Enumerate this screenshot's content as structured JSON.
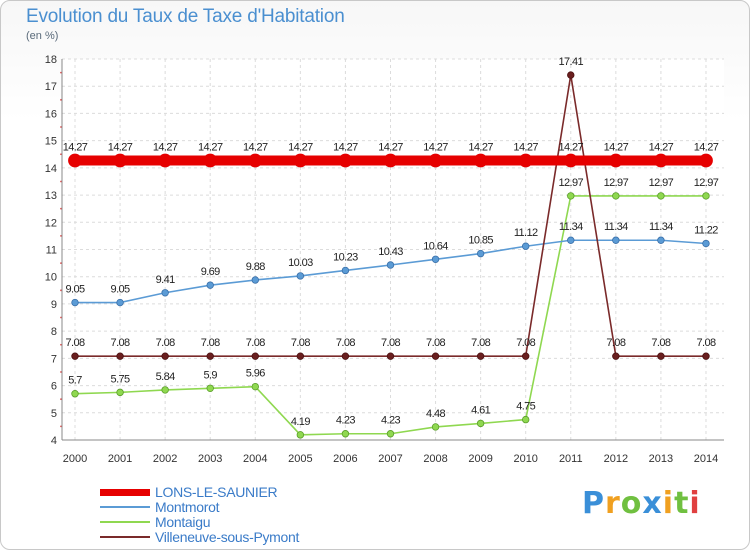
{
  "chart_data": {
    "type": "line",
    "title": "Evolution du Taux de Taxe d'Habitation",
    "subtitle": "(en %)",
    "categories": [
      "2000",
      "2001",
      "2002",
      "2003",
      "2004",
      "2005",
      "2006",
      "2007",
      "2008",
      "2009",
      "2010",
      "2011",
      "2012",
      "2013",
      "2014"
    ],
    "yticks": [
      4,
      5,
      6,
      7,
      8,
      9,
      10,
      11,
      12,
      13,
      14,
      15,
      16,
      17,
      18
    ],
    "ylim": [
      4,
      18
    ],
    "grid": true,
    "legend_position": "bottom-left",
    "series": [
      {
        "name": "LONS-LE-SAUNIER",
        "color": "#e60000",
        "values": [
          14.27,
          14.27,
          14.27,
          14.27,
          14.27,
          14.27,
          14.27,
          14.27,
          14.27,
          14.27,
          14.27,
          14.27,
          14.27,
          14.27,
          14.27
        ],
        "labels": [
          "14.27",
          "14.27",
          "14.27",
          "14.27",
          "14.27",
          "14.27",
          "14.27",
          "14.27",
          "14.27",
          "14.27",
          "14.27",
          "14.27",
          "14.27",
          "14.27",
          "14.27"
        ]
      },
      {
        "name": "Montmorot",
        "color": "#5b9bd5",
        "values": [
          9.05,
          9.05,
          9.41,
          9.69,
          9.88,
          10.03,
          10.23,
          10.43,
          10.64,
          10.85,
          11.12,
          11.34,
          11.34,
          11.34,
          11.22
        ],
        "labels": [
          "9.05",
          "9.05",
          "9.41",
          "9.69",
          "9.88",
          "10.03",
          "10.23",
          "10.43",
          "10.64",
          "10.85",
          "11.12",
          "11.34",
          "11.34",
          "11.34",
          "11.22"
        ]
      },
      {
        "name": "Montaigu",
        "color": "#8fd850",
        "values": [
          5.7,
          5.75,
          5.84,
          5.9,
          5.96,
          4.19,
          4.23,
          4.23,
          4.48,
          4.61,
          4.75,
          12.97,
          12.97,
          12.97,
          12.97
        ],
        "labels": [
          "5.7",
          "5.75",
          "5.84",
          "5.9",
          "5.96",
          "4.19",
          "4.23",
          "4.23",
          "4.48",
          "4.61",
          "4.75",
          "12.97",
          "12.97",
          "12.97",
          "12.97"
        ]
      },
      {
        "name": "Villeneuve-sous-Pymont",
        "color": "#7a2a2a",
        "values": [
          7.08,
          7.08,
          7.08,
          7.08,
          7.08,
          7.08,
          7.08,
          7.08,
          7.08,
          7.08,
          7.08,
          17.41,
          7.08,
          7.08,
          7.08
        ],
        "labels": [
          "7.08",
          "7.08",
          "7.08",
          "7.08",
          "7.08",
          "7.08",
          "7.08",
          "7.08",
          "7.08",
          "7.08",
          "7.08",
          "17.41",
          "7.08",
          "7.08",
          "7.08"
        ]
      }
    ]
  },
  "logo": {
    "letters": [
      "P",
      "r",
      "o",
      "x",
      "i",
      "t",
      "i"
    ],
    "colors": [
      "#3a8fd8",
      "#f0a020",
      "#70c040",
      "#3a8fd8",
      "#f0a020",
      "#70c040",
      "#e04040"
    ]
  }
}
